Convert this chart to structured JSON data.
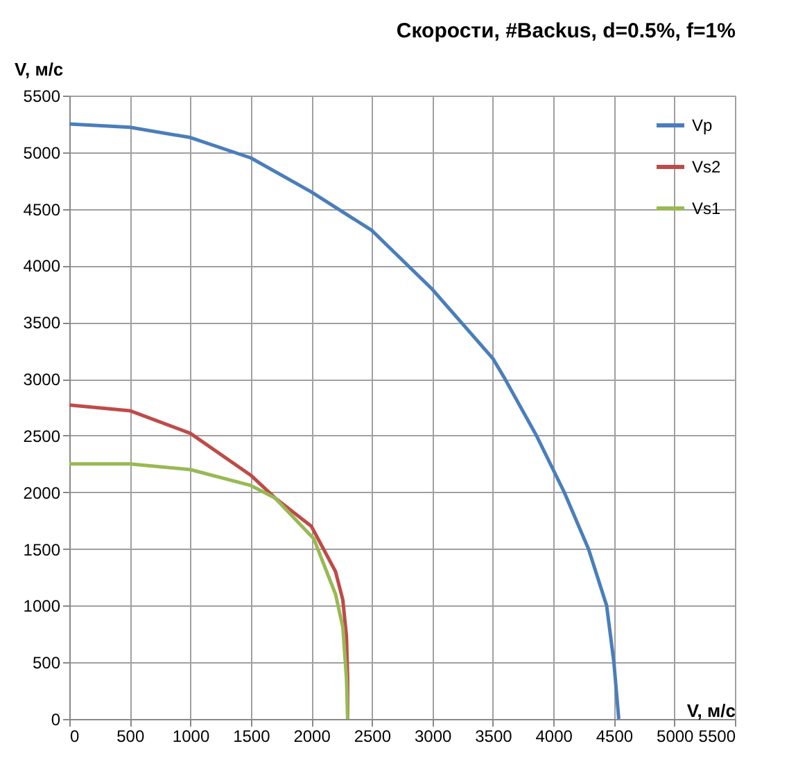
{
  "chart_data": {
    "type": "line",
    "title": "Скорости, #Backus, d=0.5%, f=1%",
    "xlabel": "V, м/с",
    "ylabel": "V, м/с",
    "xlim": [
      0,
      5500
    ],
    "xticks": [
      0,
      500,
      1000,
      1500,
      2000,
      2500,
      3000,
      3500,
      4000,
      4500,
      5000,
      5500
    ],
    "ylim": [
      0,
      5500
    ],
    "yticks": [
      0,
      500,
      1000,
      1500,
      2000,
      2500,
      3000,
      3500,
      4000,
      4500,
      5000,
      5500
    ],
    "grid": true,
    "legend": "top right",
    "marker": "none",
    "line_style": "solid",
    "series": [
      {
        "name": "Vp",
        "color": "#4a7ebb",
        "x": [
          0,
          500,
          1000,
          1500,
          2000,
          2500,
          3000,
          3500,
          3600,
          3860,
          4090,
          4290,
          4440,
          4500,
          4540
        ],
        "values": [
          5250,
          5220,
          5130,
          4950,
          4650,
          4310,
          3790,
          3180,
          3000,
          2500,
          2000,
          1500,
          1000,
          500,
          0
        ]
      },
      {
        "name": "Vs2",
        "color": "#be4b48",
        "x": [
          0,
          500,
          1000,
          1500,
          1700,
          2000,
          2200,
          2260,
          2290,
          2300,
          2300
        ],
        "values": [
          2770,
          2720,
          2520,
          2150,
          1950,
          1700,
          1300,
          1050,
          730,
          360,
          0
        ]
      },
      {
        "name": "Vs1",
        "color": "#98b954",
        "x": [
          0,
          500,
          1000,
          1500,
          1700,
          2020,
          2200,
          2260,
          2290,
          2300
        ],
        "values": [
          2250,
          2250,
          2200,
          2060,
          1950,
          1590,
          1100,
          810,
          360,
          0
        ]
      }
    ]
  }
}
